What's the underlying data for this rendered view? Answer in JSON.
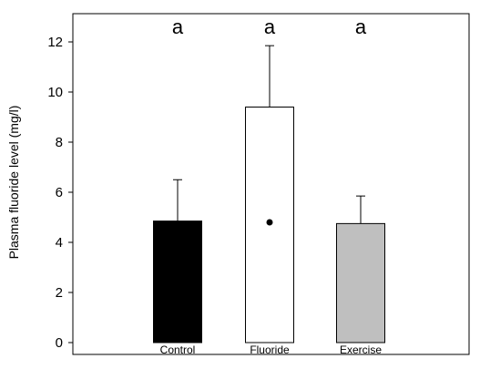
{
  "chart_data": {
    "type": "bar",
    "categories": [
      "Control",
      "Fluoride",
      "Exercise"
    ],
    "values": [
      4.85,
      9.4,
      4.75
    ],
    "error_upper": [
      6.5,
      11.85,
      5.85
    ],
    "bar_colors": [
      "#000000",
      "#ffffff",
      "#bfbfbf"
    ],
    "significance_labels": [
      "a",
      "a",
      "a"
    ],
    "point_marker": {
      "category_index": 1,
      "value": 4.8
    },
    "ylabel": "Plasma fluoride level (mg/l)",
    "xlabel": "",
    "title": "",
    "ylim": [
      0,
      12.6
    ],
    "yticks": [
      0,
      2,
      4,
      6,
      8,
      10,
      12
    ],
    "grid": false,
    "legend": "none"
  }
}
